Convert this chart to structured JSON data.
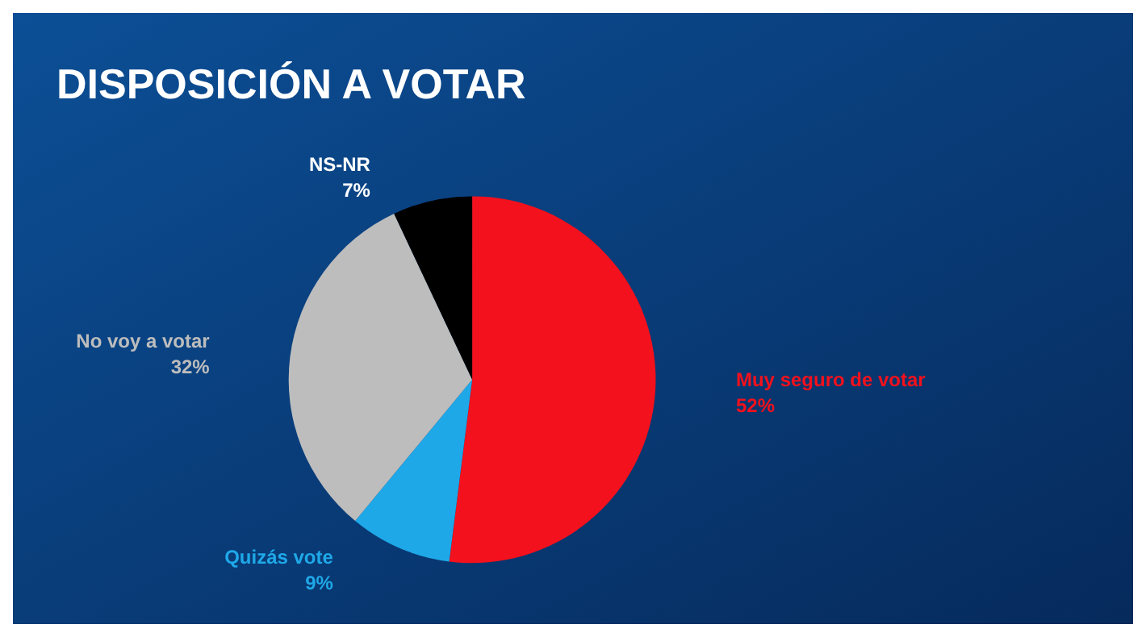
{
  "chart_data": {
    "type": "pie",
    "title": "DISPOSICIÓN A VOTAR",
    "categories": [
      "Muy seguro de votar",
      "Quizás vote",
      "No voy a votar",
      "NS-NR"
    ],
    "values": [
      52,
      9,
      32,
      7
    ],
    "colors": [
      "#f2111d",
      "#1fa8e8",
      "#bdbdbd",
      "#000000"
    ],
    "value_labels": [
      "52%",
      "9%",
      "32%",
      "7%"
    ],
    "legend": false
  }
}
